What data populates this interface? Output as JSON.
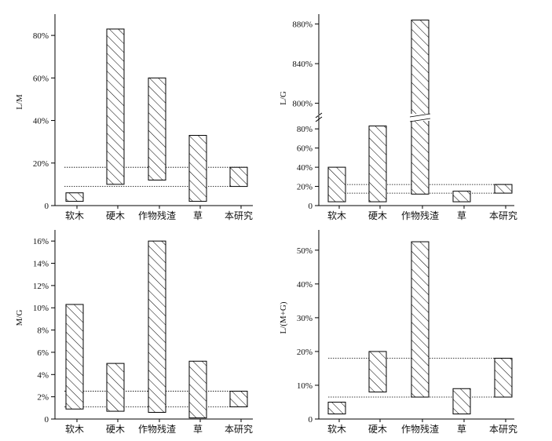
{
  "chart_data": [
    {
      "type": "floating-bar",
      "ylabel": "L/M",
      "categories": [
        "软木",
        "硬木",
        "作物残渣",
        "草",
        "本研究"
      ],
      "ranges": [
        [
          2,
          6
        ],
        [
          10,
          83
        ],
        [
          12,
          60
        ],
        [
          2,
          33
        ],
        [
          9,
          18
        ]
      ],
      "yticks": [
        0,
        20,
        40,
        60,
        80
      ],
      "tick_labels": [
        "0",
        "20%",
        "40%",
        "60%",
        "80%"
      ],
      "ylim": [
        0,
        90
      ],
      "ref_lines": [
        18,
        9
      ]
    },
    {
      "type": "floating-bar",
      "ylabel": "L/G",
      "categories": [
        "软木",
        "硬木",
        "作物残渣",
        "草",
        "本研究"
      ],
      "ranges": [
        [
          4,
          40
        ],
        [
          4,
          83
        ],
        [
          12,
          884
        ],
        [
          4,
          15
        ],
        [
          13,
          22
        ]
      ],
      "axis_break": true,
      "yticks": [
        0,
        20,
        40,
        60,
        80,
        800,
        840,
        880
      ],
      "tick_labels": [
        "0",
        "20%",
        "40%",
        "60%",
        "80%",
        "800%",
        "840%",
        "880%"
      ],
      "ylim": [
        0,
        890
      ],
      "ref_lines": [
        22,
        13
      ]
    },
    {
      "type": "floating-bar",
      "ylabel": "M/G",
      "categories": [
        "软木",
        "硬木",
        "作物残渣",
        "草",
        "本研究"
      ],
      "ranges": [
        [
          0.9,
          10.3
        ],
        [
          0.7,
          5.0
        ],
        [
          0.6,
          16.0
        ],
        [
          0.1,
          5.2
        ],
        [
          1.1,
          2.5
        ]
      ],
      "yticks": [
        0,
        2,
        4,
        6,
        8,
        10,
        12,
        14,
        16
      ],
      "tick_labels": [
        "0",
        "2%",
        "4%",
        "6%",
        "8%",
        "10%",
        "12%",
        "14%",
        "16%"
      ],
      "ylim": [
        0,
        17
      ],
      "ref_lines": [
        2.5,
        1.1
      ]
    },
    {
      "type": "floating-bar",
      "ylabel": "L/(M+G)",
      "categories": [
        "软木",
        "硬木",
        "作物残渣",
        "草",
        "本研究"
      ],
      "ranges": [
        [
          1.5,
          5
        ],
        [
          8,
          20
        ],
        [
          6.5,
          52.5
        ],
        [
          1.5,
          9
        ],
        [
          6.5,
          18
        ]
      ],
      "yticks": [
        0,
        10,
        20,
        30,
        40,
        50
      ],
      "tick_labels": [
        "0",
        "10%",
        "20%",
        "30%",
        "40%",
        "50%"
      ],
      "ylim": [
        0,
        56
      ],
      "ref_lines": [
        18,
        6.5
      ]
    }
  ]
}
